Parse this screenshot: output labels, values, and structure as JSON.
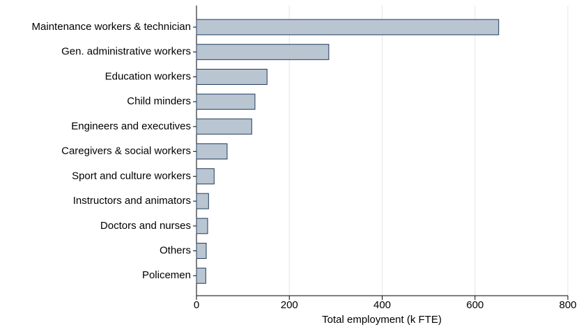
{
  "chart_data": {
    "type": "hbar",
    "xlabel": "Total employment (k FTE)",
    "categories": [
      "Maintenance workers & technician",
      "Gen. administrative workers",
      "Education workers",
      "Child minders",
      "Engineers and executives",
      "Caregivers & social workers",
      "Sport and culture workers",
      "Instructors and animators",
      "Doctors and nurses",
      "Others",
      "Policemen"
    ],
    "values": [
      651,
      285,
      152,
      126,
      119,
      66,
      38,
      26,
      24,
      21,
      20
    ],
    "color": "#b9c5d1",
    "edgecolor": "#1f3a5a",
    "xlim": [
      0,
      800
    ],
    "xticks": [
      0,
      200,
      400,
      600,
      800
    ],
    "grid": true
  }
}
